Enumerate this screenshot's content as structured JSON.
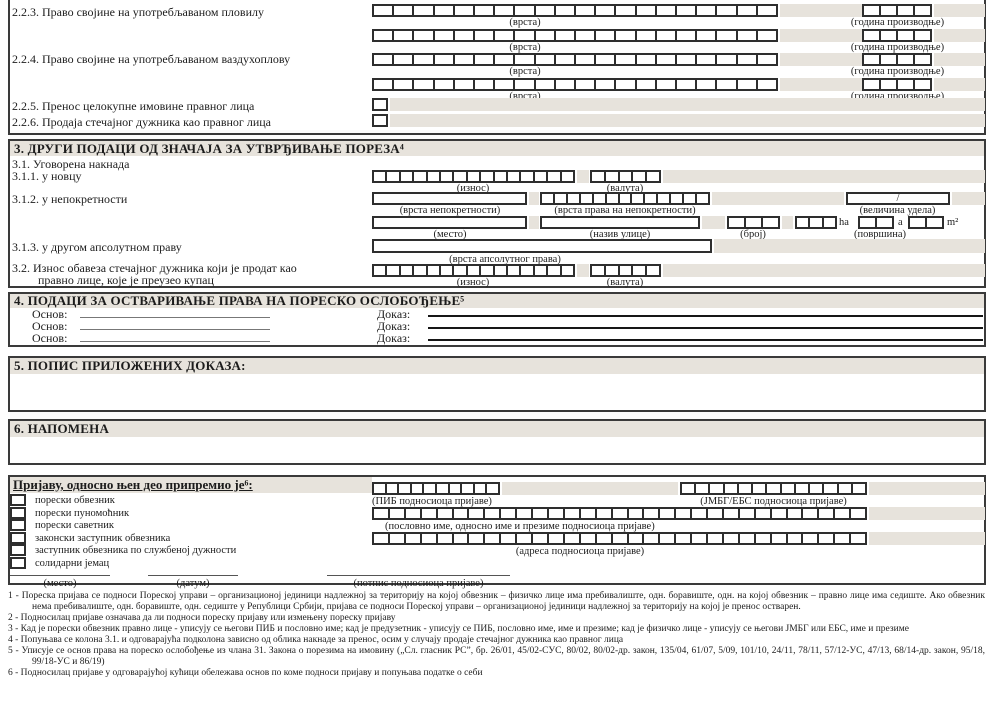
{
  "colors": {
    "bar": "#e7e3dc",
    "border": "#3a3a3a"
  },
  "section2": {
    "item_223": "2.2.3. Право својине на употребљаваном пловилу",
    "item_224": "2.2.4. Право својине на употребљаваном ваздухоплову",
    "item_225": "2.2.5. Пренос целокупне имовине правног лица",
    "item_226": "2.2.6. Продаја стечајног дужника као правног лица",
    "vrsta_label": "(врста)",
    "godina_label": "(година производње)",
    "vrsta_cells": 20,
    "godina_cells": 4
  },
  "section3": {
    "title": "3. ДРУГИ ПОДАЦИ ОД ЗНАЧАЈА ЗА УТВРЂИВАЊЕ ПОРЕЗА⁴",
    "item_31": "3.1.  Уговорена накнада",
    "item_311": "3.1.1. у новцу",
    "item_312": "3.1.2. у непокретности",
    "item_313": "3.1.3. у другом апсолутном праву",
    "item_32_line1": "3.2. Износ обавеза стечајног дужника који је продат као",
    "item_32_line2": "правно лице, које је преузео купац",
    "iznos_label": "(износ)",
    "valuta_label": "(валута)",
    "vrsta_nepokretnosti_label": "(врста непокретности)",
    "vrsta_prava_label": "(врста права на непокретности)",
    "velicina_udela_label": "(величина удела)",
    "velicina_udela_value": "/",
    "mesto_label": "(место)",
    "naziv_ulice_label": "(назив улице)",
    "broj_label": "(број)",
    "povrsina_label": "(површина)",
    "ha_label": "ha",
    "a_label": "a",
    "m2_label": "m²",
    "vrsta_apsolutnog_prava_label": "(врста апсолутног права)",
    "iznos_cells": 15,
    "valuta_cells": 5,
    "vrsta_prava_cells": 13,
    "broj_cells": 3,
    "ha_cells": 3,
    "a_cells": 2,
    "m2_cells": 2
  },
  "section4": {
    "title": "4. ПОДАЦИ ЗА ОСТВАРИВАЊЕ ПРАВА НА ПОРЕСКО ОСЛОБОЂЕЊЕ⁵",
    "osnov_label": "Основ:",
    "dokaz_label": "Доказ:"
  },
  "section5": {
    "title": "5. ПОПИС ПРИЛОЖЕНИХ ДОКАЗА:"
  },
  "section6": {
    "title": "6. НАПОМЕНА"
  },
  "preparer": {
    "title": "Пријаву, односно њен део припремио је⁶:",
    "options": [
      "порески обвезник",
      "порески пуномоћник",
      "порески саветник",
      "законски заступник обвезника",
      "заступник обвезника по службеној дужности",
      "солидарни јемац"
    ],
    "pib_label": "(ПИБ подносиоца пријаве)",
    "jmbg_label": "(ЈМБГ/ЕБС подносиоца пријаве)",
    "name_label": "(пословно име, односно име и презиме подносиоца пријаве)",
    "address_label": "(адреса подносиоца пријаве)",
    "mesto_label": "(место)",
    "datum_label": "(датум)",
    "potpis_label": "(потпис  подносиоца пријаве)",
    "pib_cells": 10,
    "jmbg_cells": 13,
    "name_cells": 31,
    "address_cells": 31
  },
  "footnotes": [
    {
      "num": "1 -",
      "text": "Пореска пријава се подноси Пореској управи – организационој јединици надлежној за територију на којој обвезник – физичко лице има  пребивалиште, одн. боравиште, одн. на  којој обвезник – правно лице има седиште. Ако обвезник нема пребивалиште, одн. боравиште, одн. седиште у Републици Србији, пријава се подноси Пореској   управи – организационој јединици надлежној за територију на којој је пренос остварен."
    },
    {
      "num": "2 -",
      "text": "Подносилац пријаве означава да ли подноси пореску пријаву или измењену пореску пријаву"
    },
    {
      "num": "3 -",
      "text": "Кад је порески обвезник правно лице - уписују се његови ПИБ и пословно име; кад је предузетник - уписују се ПИБ, пословно име, име и презиме; кад је физичко лице - уписују се његови ЈМБГ или ЕБС, име и презиме"
    },
    {
      "num": "4 -",
      "text": "Попуњава се колона 3.1. и одговарајућа подколона зависно од облика накнаде за пренос, осим у случају продаје стечајног дужника као правног лица"
    },
    {
      "num": "5 -",
      "text": "Уписује се основ права на пореско ослобођење из члана 31. Закона о порезима на имовину („Сл. гласник РС”, бр. 26/01, 45/02-СУС, 80/02, 80/02-др. закон, 135/04, 61/07, 5/09, 101/10, 24/11, 78/11, 57/12-УС,  47/13, 68/14-др. закон, 95/18, 99/18-УС и 86/19)"
    },
    {
      "num": "6 -",
      "text": "Подносилац пријаве у одговарајућој кућици обележава основ по коме подноси пријаву и попуњава податке о себи"
    }
  ]
}
